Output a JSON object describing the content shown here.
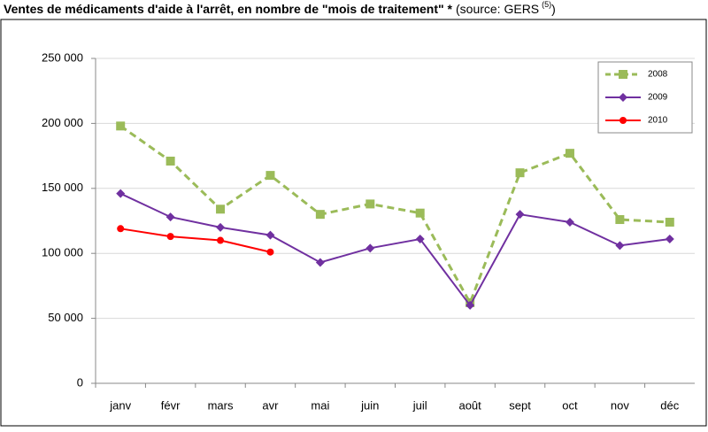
{
  "chart_data": {
    "type": "line",
    "title": "Ventes de médicaments d'aide à l'arrêt, en nombre de \"mois de traitement\" *",
    "source": "(source: GERS",
    "source_ref": "(5)",
    "source_end": ")",
    "categories": [
      "janv",
      "févr",
      "mars",
      "avr",
      "mai",
      "juin",
      "juil",
      "août",
      "sept",
      "oct",
      "nov",
      "déc"
    ],
    "series": [
      {
        "name": "2008",
        "color": "#9bbb59",
        "dash": true,
        "marker": "square",
        "values": [
          198000,
          171000,
          134000,
          160000,
          130000,
          138000,
          131000,
          62000,
          162000,
          177000,
          126000,
          124000
        ]
      },
      {
        "name": "2009",
        "color": "#7030a0",
        "dash": false,
        "marker": "diamond",
        "values": [
          146000,
          128000,
          120000,
          114000,
          93000,
          104000,
          111000,
          60000,
          130000,
          124000,
          106000,
          111000
        ]
      },
      {
        "name": "2010",
        "color": "#ff0000",
        "dash": false,
        "marker": "circle",
        "values": [
          119000,
          113000,
          110000,
          101000,
          null,
          null,
          null,
          null,
          null,
          null,
          null,
          null
        ]
      }
    ],
    "ylim": [
      0,
      250000
    ],
    "yticks": [
      0,
      {
        "value": 50000,
        "label": "50 000"
      },
      {
        "value": 100000,
        "label": "100 000"
      },
      {
        "value": 150000,
        "label": "150 000"
      },
      {
        "value": 200000,
        "label": "200 000"
      },
      {
        "value": 250000,
        "label": "250 000"
      }
    ],
    "grid": true,
    "legend": "top-right"
  }
}
